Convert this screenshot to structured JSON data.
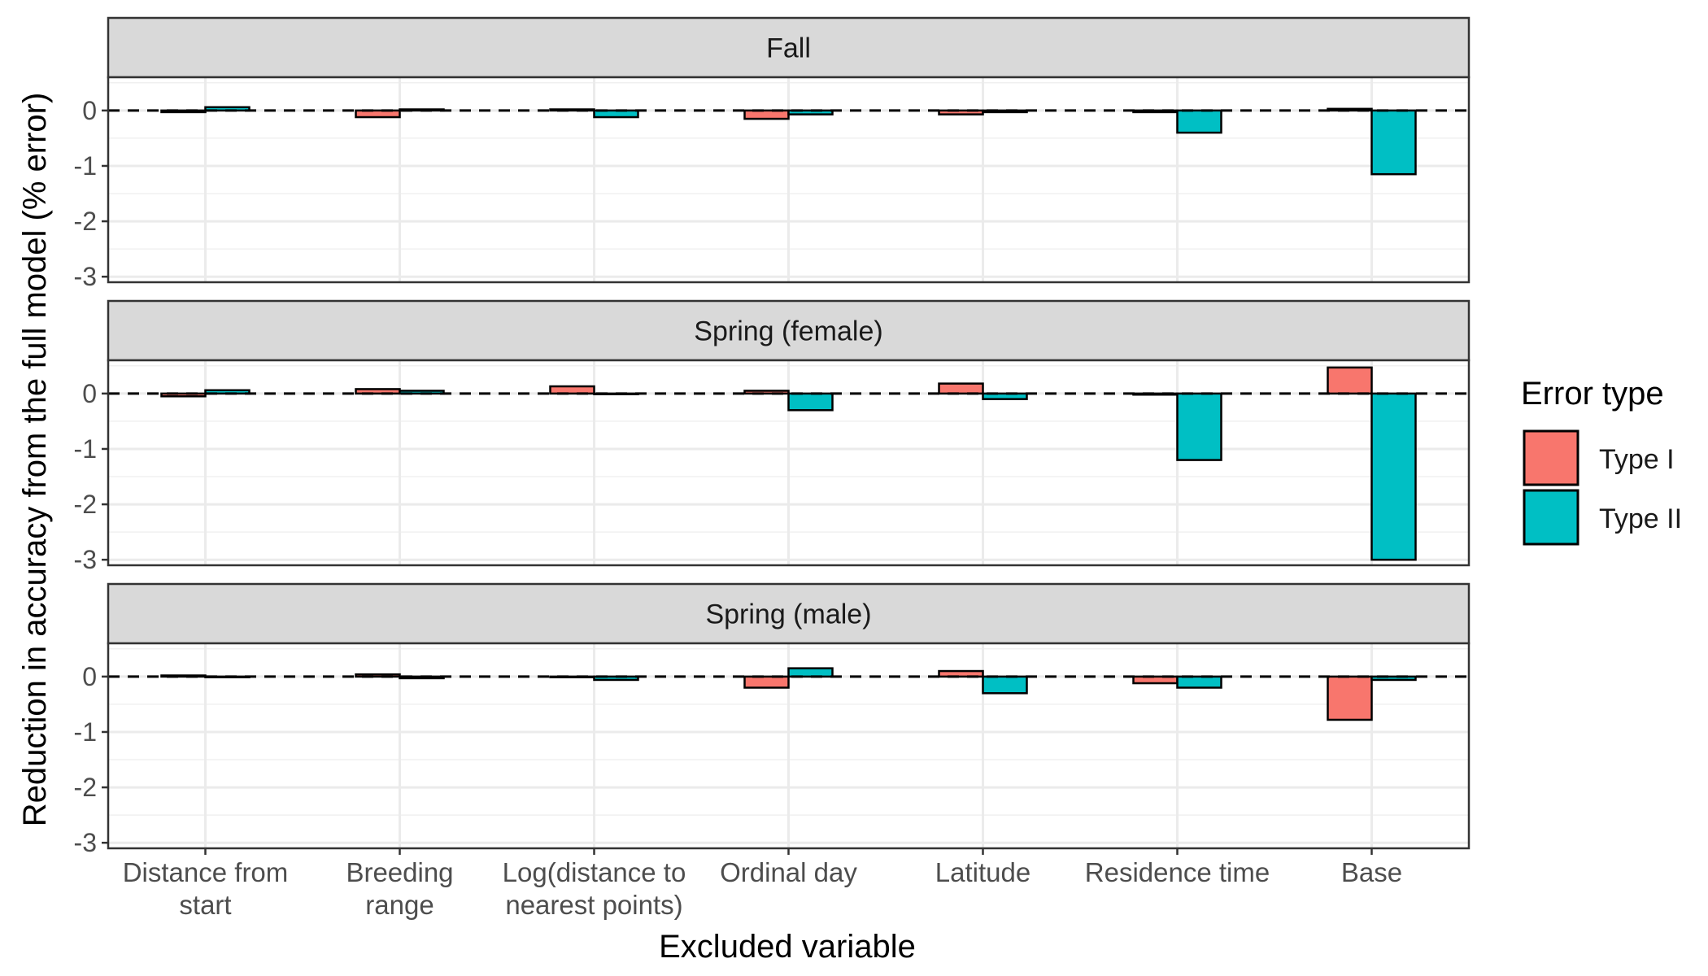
{
  "chart_data": {
    "type": "bar",
    "xlabel": "Excluded variable",
    "ylabel": "Reduction in accuracy from the full model (% error)",
    "ylim": [
      -3.1,
      0.6
    ],
    "yticks": [
      0,
      -1,
      -2,
      -3
    ],
    "categories": [
      [
        "Distance from",
        "start"
      ],
      [
        "Breeding",
        "range"
      ],
      [
        "Log(distance to",
        "nearest points)"
      ],
      [
        "Ordinal day"
      ],
      [
        "Latitude"
      ],
      [
        "Residence time"
      ],
      [
        "Base"
      ]
    ],
    "legend": {
      "title": "Error type",
      "position": "right",
      "entries": [
        {
          "name": "Type I",
          "color": "#F8766D"
        },
        {
          "name": "Type II",
          "color": "#00BFC4"
        }
      ]
    },
    "reference_line": {
      "y": 0,
      "style": "dashed"
    },
    "grid": true,
    "panels": [
      {
        "title": "Fall",
        "series": [
          {
            "name": "Type I",
            "values": [
              -0.03,
              -0.12,
              0.02,
              -0.15,
              -0.07,
              -0.03,
              0.03
            ]
          },
          {
            "name": "Type II",
            "values": [
              0.06,
              0.02,
              -0.12,
              -0.07,
              -0.03,
              -0.4,
              -1.15
            ]
          }
        ]
      },
      {
        "title": "Spring (female)",
        "series": [
          {
            "name": "Type I",
            "values": [
              -0.05,
              0.08,
              0.13,
              0.05,
              0.18,
              -0.02,
              0.47
            ]
          },
          {
            "name": "Type II",
            "values": [
              0.06,
              0.05,
              -0.01,
              -0.3,
              -0.1,
              -1.2,
              -3.0
            ]
          }
        ]
      },
      {
        "title": "Spring (male)",
        "series": [
          {
            "name": "Type I",
            "values": [
              0.02,
              0.04,
              -0.01,
              -0.2,
              0.1,
              -0.12,
              -0.78
            ]
          },
          {
            "name": "Type II",
            "values": [
              -0.01,
              -0.03,
              -0.06,
              0.15,
              -0.3,
              -0.2,
              -0.06
            ]
          }
        ]
      }
    ]
  }
}
